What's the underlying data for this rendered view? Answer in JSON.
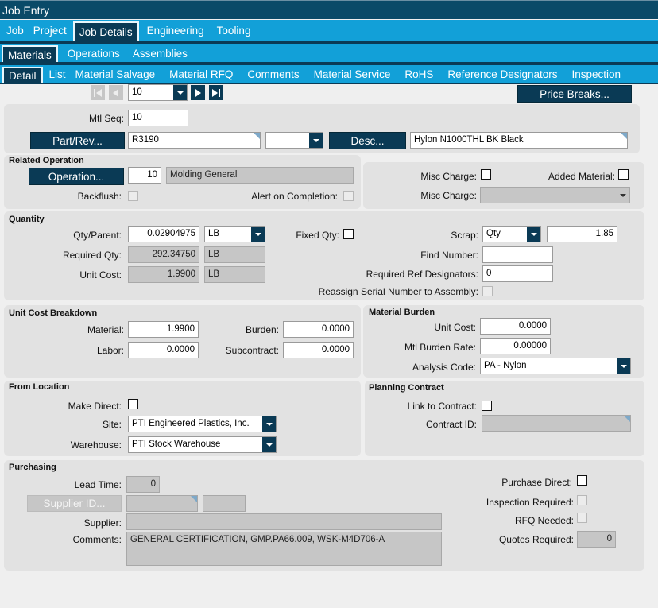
{
  "window": {
    "title": "Job Entry"
  },
  "tabs1": [
    "Job",
    "Project",
    "Job Details",
    "Engineering",
    "Tooling"
  ],
  "tabs2": [
    "Materials",
    "Operations",
    "Assemblies"
  ],
  "tabs3": [
    "Detail",
    "List",
    "Material Salvage",
    "Material RFQ",
    "Comments",
    "Material Service",
    "RoHS",
    "Reference Designators",
    "Inspection"
  ],
  "nav": {
    "current": "10"
  },
  "price_breaks_label": "Price Breaks...",
  "header": {
    "mtl_seq_label": "Mtl Seq:",
    "mtl_seq": "10",
    "part_rev_label": "Part/Rev...",
    "part": "R3190",
    "rev": "",
    "desc_label": "Desc...",
    "desc": "Hylon N1000THL BK Black"
  },
  "related_operation": {
    "title": "Related Operation",
    "operation_label": "Operation...",
    "operation_seq": "10",
    "operation_desc": "Molding General",
    "backflush_label": "Backflush:",
    "alert_label": "Alert on Completion:"
  },
  "misc": {
    "misc_charge_label": "Misc Charge:",
    "added_material_label": "Added Material:",
    "misc_charge2_label": "Misc Charge:",
    "misc_charge2_value": ""
  },
  "quantity": {
    "title": "Quantity",
    "qty_parent_label": "Qty/Parent:",
    "qty_parent": "0.02904975",
    "qty_parent_uom": "LB",
    "required_qty_label": "Required Qty:",
    "required_qty": "292.34750",
    "required_qty_uom": "LB",
    "unit_cost_label": "Unit Cost:",
    "unit_cost": "1.9900",
    "unit_cost_uom": "LB",
    "fixed_qty_label": "Fixed Qty:",
    "scrap_label": "Scrap:",
    "scrap_type": "Qty",
    "scrap_value": "1.85",
    "find_number_label": "Find Number:",
    "find_number": "",
    "req_ref_label": "Required Ref Designators:",
    "req_ref": "0",
    "reassign_label": "Reassign Serial Number to Assembly:"
  },
  "unit_cost_breakdown": {
    "title": "Unit Cost Breakdown",
    "material_label": "Material:",
    "material": "1.9900",
    "labor_label": "Labor:",
    "labor": "0.0000",
    "burden_label": "Burden:",
    "burden": "0.0000",
    "subcontract_label": "Subcontract:",
    "subcontract": "0.0000"
  },
  "material_burden": {
    "title": "Material Burden",
    "unit_cost_label": "Unit Cost:",
    "unit_cost": "0.0000",
    "rate_label": "Mtl  Burden Rate:",
    "rate": "0.00000",
    "analysis_label": "Analysis Code:",
    "analysis": "PA - Nylon"
  },
  "from_location": {
    "title": "From Location",
    "make_direct_label": "Make Direct:",
    "site_label": "Site:",
    "site": "PTI Engineered Plastics, Inc.",
    "warehouse_label": "Warehouse:",
    "warehouse": "PTI Stock Warehouse"
  },
  "planning_contract": {
    "title": "Planning Contract",
    "link_label": "Link to Contract:",
    "contract_id_label": "Contract ID:",
    "contract_id": ""
  },
  "purchasing": {
    "title": "Purchasing",
    "lead_time_label": "Lead Time:",
    "lead_time": "0",
    "supplier_id_label": "Supplier ID...",
    "supplier_label": "Supplier:",
    "supplier": "",
    "comments_label": "Comments:",
    "comments": "GENERAL CERTIFICATION, GMP.PA66.009, WSK-M4D706-A",
    "purchase_direct_label": "Purchase Direct:",
    "inspection_label": "Inspection  Required:",
    "rfq_label": "RFQ Needed:",
    "quotes_label": "Quotes Required:",
    "quotes": "0"
  }
}
